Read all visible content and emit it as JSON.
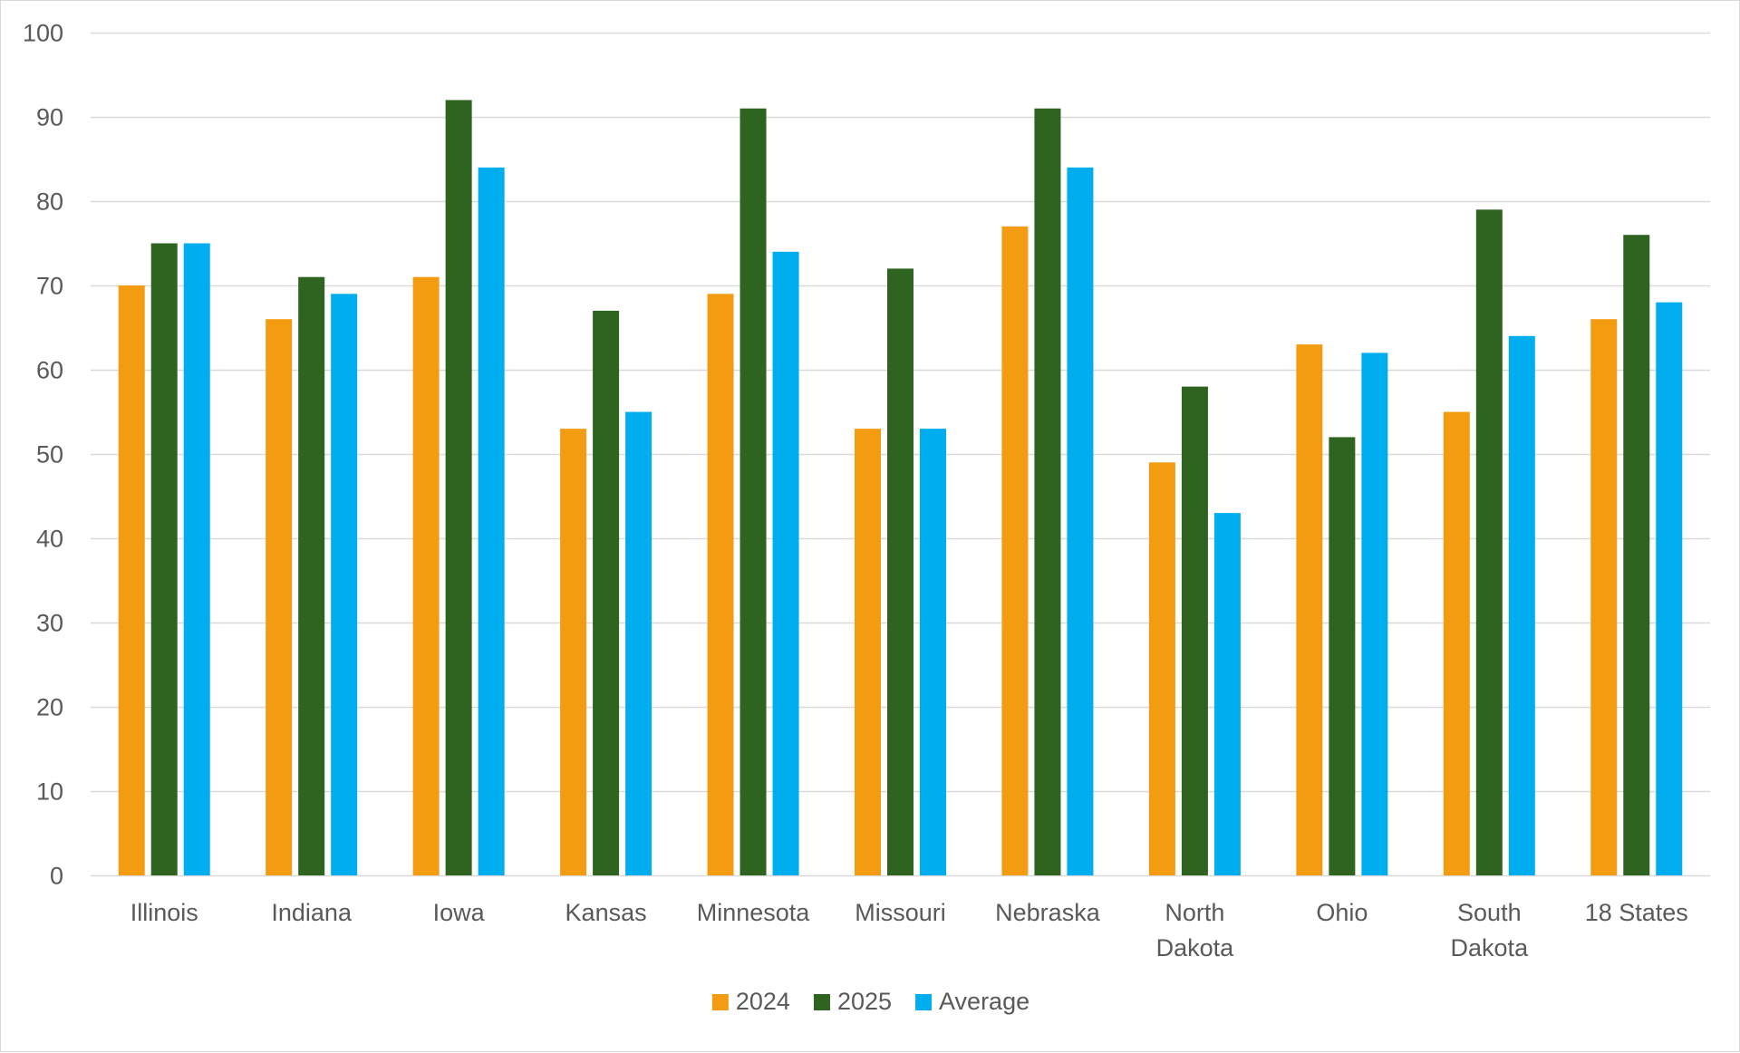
{
  "chart_data": {
    "type": "bar",
    "title": "",
    "xlabel": "",
    "ylabel": "",
    "ylim": [
      0,
      100
    ],
    "yticks": [
      0,
      10,
      20,
      30,
      40,
      50,
      60,
      70,
      80,
      90,
      100
    ],
    "grid": true,
    "legend": "bottom-center",
    "categories": [
      [
        "Illinois"
      ],
      [
        "Indiana"
      ],
      [
        "Iowa"
      ],
      [
        "Kansas"
      ],
      [
        "Minnesota"
      ],
      [
        "Missouri"
      ],
      [
        "Nebraska"
      ],
      [
        "North",
        "Dakota"
      ],
      [
        "Ohio"
      ],
      [
        "South",
        "Dakota"
      ],
      [
        "18 States"
      ]
    ],
    "series": [
      {
        "name": "2024",
        "color": "#f39c12",
        "values": [
          70,
          66,
          71,
          53,
          69,
          53,
          77,
          49,
          63,
          55,
          66
        ]
      },
      {
        "name": "2025",
        "color": "#2e6320",
        "values": [
          75,
          71,
          92,
          67,
          91,
          72,
          91,
          58,
          52,
          79,
          76
        ]
      },
      {
        "name": "Average",
        "color": "#00aeef",
        "values": [
          75,
          69,
          84,
          55,
          74,
          53,
          84,
          43,
          62,
          64,
          68
        ]
      }
    ],
    "gridline_color": "#d9d9d9",
    "axis_color": "#d9d9d9"
  }
}
